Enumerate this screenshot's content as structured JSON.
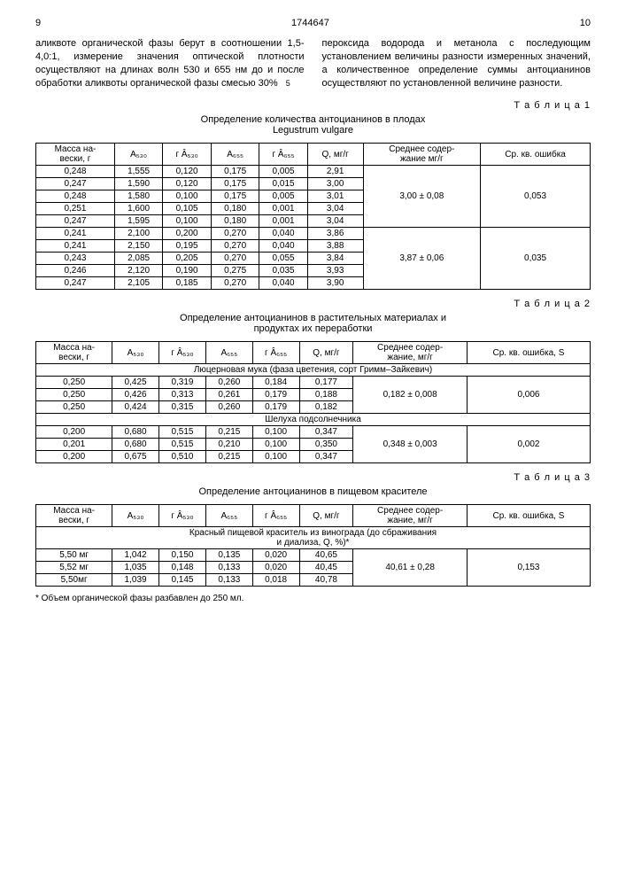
{
  "doc_number": "1744647",
  "page_left": "9",
  "page_right": "10",
  "col_left_text": "аликвоте органической фазы берут в соотношении 1,5-4,0:1, измерение значения оптической плотности осуществляют на длинах волн 530 и 655 нм до и после обработки аликвоты органической фазы смесью 30%",
  "line_marker": "5",
  "col_right_text": "пероксида водорода и метанола с последующим установлением величины разности измеренных значений, а количественное определение суммы антоцианинов осуществляют по установленной величине разности.",
  "t1": {
    "label": "Т а б л и ц а 1",
    "title1": "Определение количества антоцианинов в плодах",
    "title2": "Legustrum vulgare",
    "headers": [
      "Масса на-вески, г",
      "A₅₃₀",
      "г Â₅₃₀",
      "A₆₅₅",
      "г Â₆₅₅",
      "Q, мг/г",
      "Среднее содер-жание мг/г",
      "Ср. кв. ошибка"
    ],
    "rows": [
      [
        "0,248",
        "1,555",
        "0,120",
        "0,175",
        "0,005",
        "2,91",
        "",
        ""
      ],
      [
        "0,247",
        "1,590",
        "0,120",
        "0,175",
        "0,015",
        "3,00",
        "",
        ""
      ],
      [
        "0,248",
        "1,580",
        "0,100",
        "0,175",
        "0,005",
        "3,01",
        "3,00 ± 0,08",
        "0,053"
      ],
      [
        "0,251",
        "1,600",
        "0,105",
        "0,180",
        "0,001",
        "3,04",
        "",
        ""
      ],
      [
        "0,247",
        "1,595",
        "0,100",
        "0,180",
        "0,001",
        "3,04",
        "",
        ""
      ],
      [
        "0,241",
        "2,100",
        "0,200",
        "0,270",
        "0,040",
        "3,86",
        "",
        ""
      ],
      [
        "0,241",
        "2,150",
        "0,195",
        "0,270",
        "0,040",
        "3,88",
        "",
        ""
      ],
      [
        "0,243",
        "2,085",
        "0,205",
        "0,270",
        "0,055",
        "3,84",
        "3,87 ± 0,06",
        "0,035"
      ],
      [
        "0,246",
        "2,120",
        "0,190",
        "0,275",
        "0,035",
        "3,93",
        "",
        ""
      ],
      [
        "0,247",
        "2,105",
        "0,185",
        "0,270",
        "0,040",
        "3,90",
        "",
        ""
      ]
    ]
  },
  "t2": {
    "label": "Т а б л и ц а 2",
    "title1": "Определение антоцианинов в растительных материалах и",
    "title2": "продуктах их переработки",
    "headers": [
      "Масса на-вески, г",
      "A₅₃₀",
      "г Â₅₃₀",
      "A₆₅₅",
      "г Â₆₅₅",
      "Q, мг/г",
      "Среднее содер-жание, мг/г",
      "Ср. кв. ошибка, S"
    ],
    "sub1": "Люцерновая мука (фаза цветения, сорт Гримм–Зайкевич)",
    "rows1": [
      [
        "0,250",
        "0,425",
        "0,319",
        "0,260",
        "0,184",
        "0,177",
        "",
        ""
      ],
      [
        "0,250",
        "0,426",
        "0,313",
        "0,261",
        "0,179",
        "0,188",
        "0,182 ± 0,008",
        "0,006"
      ],
      [
        "0,250",
        "0,424",
        "0,315",
        "0,260",
        "0,179",
        "0,182",
        "",
        ""
      ]
    ],
    "sub2": "Шелуха подсолнечника",
    "rows2": [
      [
        "0,200",
        "0,680",
        "0,515",
        "0,215",
        "0,100",
        "0,347",
        "",
        ""
      ],
      [
        "0,201",
        "0,680",
        "0,515",
        "0,210",
        "0,100",
        "0,350",
        "0,348 ± 0,003",
        "0,002"
      ],
      [
        "0,200",
        "0,675",
        "0,510",
        "0,215",
        "0,100",
        "0,347",
        "",
        ""
      ]
    ]
  },
  "t3": {
    "label": "Т а б л и ц а 3",
    "title": "Определение антоцианинов в пищевом красителе",
    "headers": [
      "Масса на-вески, г",
      "A₅₃₀",
      "г Â₅₃₀",
      "A₆₅₅",
      "г Â₆₅₅",
      "Q, мг/г",
      "Среднее содер-жание, мг/г",
      "Ср. кв. ошибка, S"
    ],
    "sub1a": "Красный пищевой краситель из винограда (до сбраживания",
    "sub1b": "и диализа, Q, %)*",
    "rows": [
      [
        "5,50 мг",
        "1,042",
        "0,150",
        "0,135",
        "0,020",
        "40,65",
        "",
        ""
      ],
      [
        "5,52 мг",
        "1,035",
        "0,148",
        "0,133",
        "0,020",
        "40,45",
        "40,61 ± 0,28",
        "0,153"
      ],
      [
        "5,50мг",
        "1,039",
        "0,145",
        "0,133",
        "0,018",
        "40,78",
        "",
        ""
      ]
    ]
  },
  "footnote": "* Объем органической фазы разбавлен до 250 мл."
}
